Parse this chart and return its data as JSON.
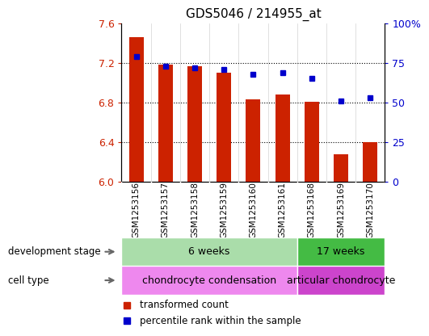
{
  "title": "GDS5046 / 214955_at",
  "samples": [
    "GSM1253156",
    "GSM1253157",
    "GSM1253158",
    "GSM1253159",
    "GSM1253160",
    "GSM1253161",
    "GSM1253168",
    "GSM1253169",
    "GSM1253170"
  ],
  "bar_values": [
    7.46,
    7.18,
    7.17,
    7.1,
    6.83,
    6.88,
    6.81,
    6.28,
    6.4
  ],
  "percentile_values": [
    79,
    73,
    72,
    71,
    68,
    69,
    65,
    51,
    53
  ],
  "bar_color": "#cc2200",
  "percentile_color": "#0000cc",
  "ylim_left": [
    6.0,
    7.6
  ],
  "ylim_right": [
    0,
    100
  ],
  "yticks_left": [
    6.0,
    6.4,
    6.8,
    7.2,
    7.6
  ],
  "yticks_right": [
    0,
    25,
    50,
    75,
    100
  ],
  "ytick_labels_right": [
    "0",
    "25",
    "50",
    "75",
    "100%"
  ],
  "grid_lines": [
    6.4,
    6.8,
    7.2
  ],
  "dev_stage_groups": [
    {
      "label": "6 weeks",
      "start": 0,
      "end": 6,
      "color": "#aaddaa"
    },
    {
      "label": "17 weeks",
      "start": 6,
      "end": 9,
      "color": "#44bb44"
    }
  ],
  "cell_type_groups": [
    {
      "label": "chondrocyte condensation",
      "start": 0,
      "end": 6,
      "color": "#ee88ee"
    },
    {
      "label": "articular chondrocyte",
      "start": 6,
      "end": 9,
      "color": "#cc44cc"
    }
  ],
  "dev_stage_label": "development stage",
  "cell_type_label": "cell type",
  "legend_bar_label": "transformed count",
  "legend_pct_label": "percentile rank within the sample",
  "axis_label_color_left": "#cc2200",
  "axis_label_color_right": "#0000cc",
  "bar_width": 0.5,
  "background_color": "#ffffff",
  "plot_bg_color": "#ffffff",
  "label_row_bg": "#cccccc",
  "n_samples": 9,
  "split_index": 6
}
